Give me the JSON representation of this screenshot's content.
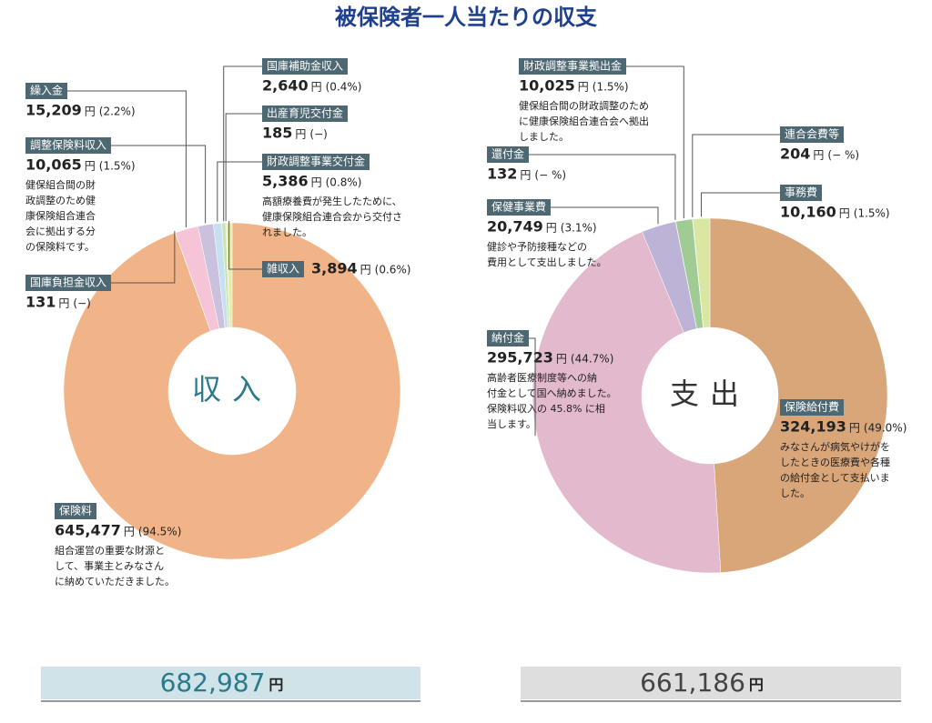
{
  "title": "被保険者一人当たりの収支",
  "chart_data": [
    {
      "type": "pie",
      "title": "収入",
      "unit": "円",
      "categories": [
        "保険料",
        "国庫負担金収入",
        "繰入金",
        "調整保険料収入",
        "財政調整事業交付金",
        "国庫補助金収入",
        "出産育児交付金",
        "雑収入"
      ],
      "values": [
        645477,
        131,
        15209,
        10065,
        5386,
        2640,
        185,
        3894
      ],
      "value_labels": [
        "645,477",
        "131",
        "15,209",
        "10,065",
        "5,386",
        "2,640",
        "185",
        "3,894"
      ],
      "percent_labels": [
        "(94.5%)",
        "(−)",
        "(2.2%)",
        "(1.5%)",
        "(0.8%)",
        "(0.4%)",
        "(−)",
        "(0.6%)"
      ],
      "notes": [
        [
          "組合運営の重要な財源と",
          "して、事業主とみなさん",
          "に納めていただきました。"
        ],
        null,
        null,
        [
          "健保組合間の財",
          "政調整のため健",
          "康保険組合連合",
          "会に拠出する分",
          "の保険料です。"
        ],
        [
          "高額療養費が発生したために、",
          "健康保険組合連合会から交付さ",
          "れました。"
        ],
        null,
        null,
        null
      ],
      "colors": [
        "#f1b488",
        "#f7cccc",
        "#f5c4d6",
        "#c9c1de",
        "#c7e0f1",
        "#cbe4b5",
        "#dfeac2",
        "#e7eca9"
      ],
      "total": 682987,
      "total_label": "682,987"
    },
    {
      "type": "pie",
      "title": "支出",
      "unit": "円",
      "categories": [
        "保険給付費",
        "納付金",
        "保健事業費",
        "還付金",
        "財政調整事業拠出金",
        "連合会費等",
        "事務費"
      ],
      "values": [
        324193,
        295723,
        20749,
        132,
        10025,
        204,
        10160
      ],
      "value_labels": [
        "324,193",
        "295,723",
        "20,749",
        "132",
        "10,025",
        "204",
        "10,160"
      ],
      "percent_labels": [
        "(49.0%)",
        "(44.7%)",
        "(3.1%)",
        "(− %)",
        "(1.5%)",
        "(− %)",
        "(1.5%)"
      ],
      "notes": [
        [
          "みなさんが病気やけがを",
          "したときの医療費や各種",
          "の給付金として支払いま",
          "した。"
        ],
        [
          "高齢者医療制度等への納",
          "付金として国へ納めました。",
          "保険料収入の 45.8% に相",
          "当します。"
        ],
        [
          "健診や予防接種などの",
          "費用として支出しました。"
        ],
        null,
        [
          "健保組合間の財政調整のため",
          "に健康保険組合連合会へ拠出",
          "しました。"
        ],
        null,
        null
      ],
      "colors": [
        "#d9a679",
        "#e3bacd",
        "#bdb3d6",
        "#cacae2",
        "#a0cb94",
        "#bad99b",
        "#d9e7a3"
      ],
      "total": 661186,
      "total_label": "661,186"
    }
  ]
}
